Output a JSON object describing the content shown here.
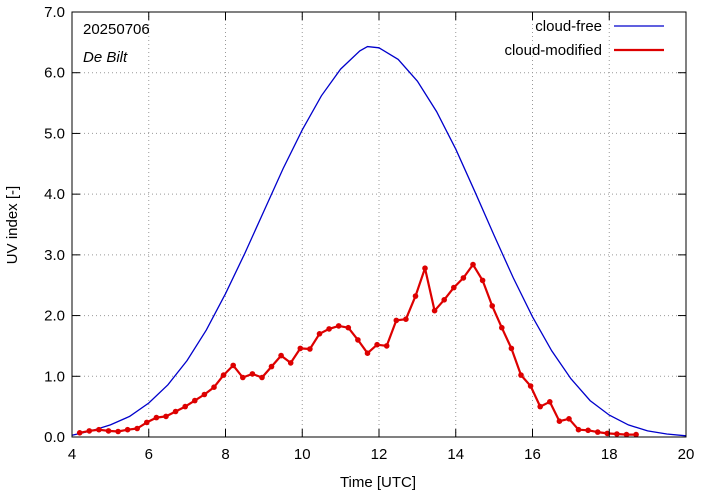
{
  "chart_data": {
    "type": "line",
    "date_label": "20250706",
    "location": "De Bilt",
    "xlabel": "Time  [UTC]",
    "ylabel": "UV index  [-]",
    "xlim": [
      4,
      20
    ],
    "ylim": [
      0,
      7
    ],
    "xticks": [
      "4",
      "6",
      "8",
      "10",
      "12",
      "14",
      "16",
      "18",
      "20"
    ],
    "yticks": [
      "0.0",
      "1.0",
      "2.0",
      "3.0",
      "4.0",
      "5.0",
      "6.0",
      "7.0"
    ],
    "legend_position": "top-right",
    "series": [
      {
        "name": "cloud-free",
        "color": "#0000cc",
        "points": [
          [
            4.0,
            0.03
          ],
          [
            4.5,
            0.1
          ],
          [
            5.0,
            0.2
          ],
          [
            5.5,
            0.34
          ],
          [
            6.0,
            0.56
          ],
          [
            6.5,
            0.86
          ],
          [
            7.0,
            1.26
          ],
          [
            7.5,
            1.76
          ],
          [
            8.0,
            2.36
          ],
          [
            8.5,
            3.02
          ],
          [
            9.0,
            3.72
          ],
          [
            9.5,
            4.42
          ],
          [
            10.0,
            5.06
          ],
          [
            10.5,
            5.62
          ],
          [
            11.0,
            6.06
          ],
          [
            11.5,
            6.36
          ],
          [
            11.7,
            6.43
          ],
          [
            12.0,
            6.41
          ],
          [
            12.5,
            6.22
          ],
          [
            13.0,
            5.86
          ],
          [
            13.5,
            5.36
          ],
          [
            14.0,
            4.74
          ],
          [
            14.5,
            4.04
          ],
          [
            15.0,
            3.32
          ],
          [
            15.5,
            2.62
          ],
          [
            16.0,
            1.98
          ],
          [
            16.5,
            1.42
          ],
          [
            17.0,
            0.96
          ],
          [
            17.5,
            0.6
          ],
          [
            18.0,
            0.36
          ],
          [
            18.5,
            0.2
          ],
          [
            19.0,
            0.1
          ],
          [
            19.5,
            0.05
          ],
          [
            20.0,
            0.02
          ]
        ]
      },
      {
        "name": "cloud-modified",
        "color": "#dd0000",
        "points": [
          [
            4.2,
            0.07
          ],
          [
            4.45,
            0.1
          ],
          [
            4.7,
            0.12
          ],
          [
            4.95,
            0.1
          ],
          [
            5.2,
            0.09
          ],
          [
            5.45,
            0.12
          ],
          [
            5.7,
            0.14
          ],
          [
            5.95,
            0.24
          ],
          [
            6.2,
            0.32
          ],
          [
            6.45,
            0.34
          ],
          [
            6.7,
            0.42
          ],
          [
            6.95,
            0.5
          ],
          [
            7.2,
            0.6
          ],
          [
            7.45,
            0.7
          ],
          [
            7.7,
            0.82
          ],
          [
            7.95,
            1.02
          ],
          [
            8.2,
            1.18
          ],
          [
            8.45,
            0.98
          ],
          [
            8.7,
            1.04
          ],
          [
            8.95,
            0.98
          ],
          [
            9.2,
            1.16
          ],
          [
            9.45,
            1.34
          ],
          [
            9.7,
            1.22
          ],
          [
            9.95,
            1.46
          ],
          [
            10.2,
            1.45
          ],
          [
            10.45,
            1.7
          ],
          [
            10.7,
            1.78
          ],
          [
            10.95,
            1.83
          ],
          [
            11.2,
            1.8
          ],
          [
            11.45,
            1.6
          ],
          [
            11.7,
            1.38
          ],
          [
            11.95,
            1.52
          ],
          [
            12.2,
            1.5
          ],
          [
            12.45,
            1.92
          ],
          [
            12.7,
            1.94
          ],
          [
            12.95,
            2.32
          ],
          [
            13.2,
            2.78
          ],
          [
            13.45,
            2.08
          ],
          [
            13.7,
            2.26
          ],
          [
            13.95,
            2.46
          ],
          [
            14.2,
            2.62
          ],
          [
            14.45,
            2.84
          ],
          [
            14.7,
            2.58
          ],
          [
            14.95,
            2.16
          ],
          [
            15.2,
            1.8
          ],
          [
            15.45,
            1.46
          ],
          [
            15.7,
            1.02
          ],
          [
            15.95,
            0.84
          ],
          [
            16.2,
            0.5
          ],
          [
            16.45,
            0.58
          ],
          [
            16.7,
            0.26
          ],
          [
            16.95,
            0.3
          ],
          [
            17.2,
            0.12
          ],
          [
            17.45,
            0.11
          ],
          [
            17.7,
            0.08
          ],
          [
            17.95,
            0.06
          ],
          [
            18.2,
            0.05
          ],
          [
            18.45,
            0.04
          ],
          [
            18.7,
            0.04
          ]
        ]
      }
    ]
  }
}
